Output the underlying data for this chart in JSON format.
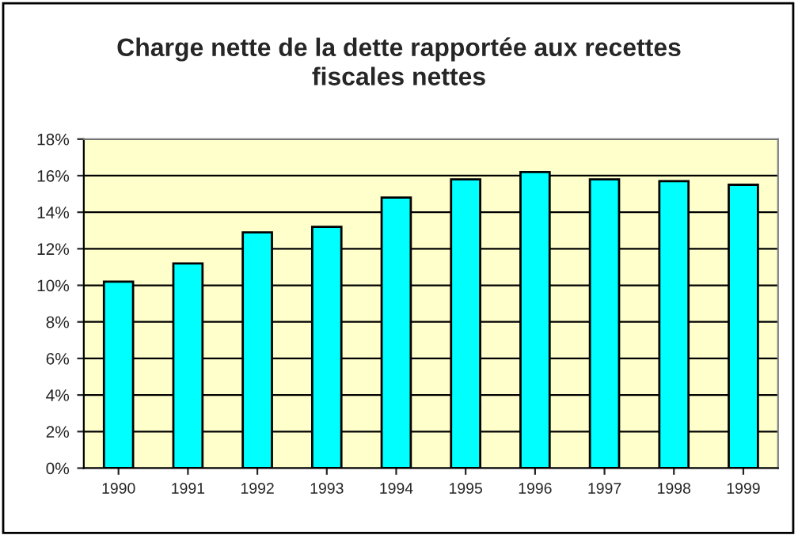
{
  "chart_data": {
    "type": "bar",
    "title": "Charge nette de la dette rapportée aux recettes\nfiscales nettes",
    "categories": [
      "1990",
      "1991",
      "1992",
      "1993",
      "1994",
      "1995",
      "1996",
      "1997",
      "1998",
      "1999"
    ],
    "values": [
      10.2,
      11.2,
      12.9,
      13.2,
      14.8,
      15.8,
      16.2,
      15.8,
      15.7,
      15.5
    ],
    "color": "#00ffff",
    "ylim": [
      0,
      18
    ],
    "yticks": [
      {
        "value": 0,
        "label": "0%"
      },
      {
        "value": 2,
        "label": "2%"
      },
      {
        "value": 4,
        "label": "4%"
      },
      {
        "value": 6,
        "label": "6%"
      },
      {
        "value": 8,
        "label": "8%"
      },
      {
        "value": 10,
        "label": "10%"
      },
      {
        "value": 12,
        "label": "12%"
      },
      {
        "value": 14,
        "label": "14%"
      },
      {
        "value": 16,
        "label": "16%"
      },
      {
        "value": 18,
        "label": "18%"
      }
    ],
    "grid": "y",
    "legend": false
  }
}
